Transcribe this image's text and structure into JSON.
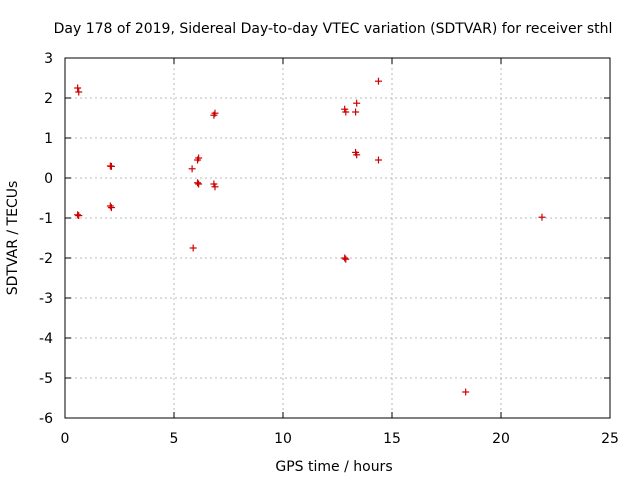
{
  "chart_data": {
    "type": "scatter",
    "title": "Day 178 of 2019, Sidereal Day-to-day VTEC variation (SDTVAR) for receiver sthl",
    "xlabel": "GPS time / hours",
    "ylabel": "SDTVAR / TECUs",
    "xlim": [
      0,
      25
    ],
    "ylim": [
      -6,
      3
    ],
    "xticks": [
      "0",
      "5",
      "10",
      "15",
      "20",
      "25"
    ],
    "yticks": [
      "3",
      "2",
      "1",
      "0",
      "-1",
      "-2",
      "-3",
      "-4",
      "-5",
      "-6"
    ],
    "grid": true,
    "marker": "+",
    "color": "#cc0000",
    "series": [
      {
        "name": "SDTVAR",
        "points": [
          [
            0.58,
            2.25
          ],
          [
            0.63,
            2.15
          ],
          [
            0.58,
            -0.92
          ],
          [
            0.63,
            -0.94
          ],
          [
            2.08,
            0.3
          ],
          [
            2.13,
            0.29
          ],
          [
            2.08,
            -0.7
          ],
          [
            2.13,
            -0.74
          ],
          [
            5.83,
            0.23
          ],
          [
            5.88,
            -1.75
          ],
          [
            6.08,
            0.45
          ],
          [
            6.13,
            0.5
          ],
          [
            6.08,
            -0.12
          ],
          [
            6.13,
            -0.15
          ],
          [
            6.83,
            1.57
          ],
          [
            6.88,
            1.62
          ],
          [
            6.83,
            -0.15
          ],
          [
            6.88,
            -0.22
          ],
          [
            12.83,
            1.72
          ],
          [
            12.88,
            1.65
          ],
          [
            12.83,
            -2.0
          ],
          [
            12.88,
            -2.03
          ],
          [
            13.33,
            1.65
          ],
          [
            13.38,
            1.87
          ],
          [
            13.33,
            0.64
          ],
          [
            13.38,
            0.58
          ],
          [
            14.38,
            2.42
          ],
          [
            14.38,
            0.45
          ],
          [
            18.38,
            -5.35
          ],
          [
            21.88,
            -0.98
          ]
        ]
      }
    ]
  }
}
